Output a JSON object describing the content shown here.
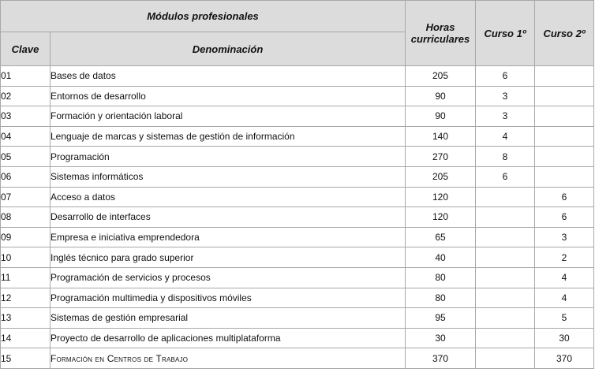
{
  "header": {
    "modulos": "Módulos profesionales",
    "horas_line1": "Horas",
    "horas_line2": "curriculares",
    "curso1": "Curso 1º",
    "curso2": "Curso 2º",
    "clave": "Clave",
    "denominacion": "Denominación"
  },
  "rows": [
    {
      "clave": "01",
      "denominacion": "Bases de datos",
      "horas": "205",
      "curso1": "6",
      "curso2": ""
    },
    {
      "clave": "02",
      "denominacion": "Entornos de desarrollo",
      "horas": "90",
      "curso1": "3",
      "curso2": ""
    },
    {
      "clave": "03",
      "denominacion": "Formación y orientación laboral",
      "horas": "90",
      "curso1": "3",
      "curso2": ""
    },
    {
      "clave": "04",
      "denominacion": "Lenguaje de marcas y sistemas de gestión de información",
      "horas": "140",
      "curso1": "4",
      "curso2": ""
    },
    {
      "clave": "05",
      "denominacion": "Programación",
      "horas": "270",
      "curso1": "8",
      "curso2": ""
    },
    {
      "clave": "06",
      "denominacion": "Sistemas informáticos",
      "horas": "205",
      "curso1": "6",
      "curso2": ""
    },
    {
      "clave": "07",
      "denominacion": "Acceso a datos",
      "horas": "120",
      "curso1": "",
      "curso2": "6"
    },
    {
      "clave": "08",
      "denominacion": "Desarrollo de interfaces",
      "horas": "120",
      "curso1": "",
      "curso2": "6"
    },
    {
      "clave": "09",
      "denominacion": "Empresa e iniciativa emprendedora",
      "horas": "65",
      "curso1": "",
      "curso2": "3"
    },
    {
      "clave": "10",
      "denominacion": "Inglés técnico para grado superior",
      "horas": "40",
      "curso1": "",
      "curso2": "2"
    },
    {
      "clave": "11",
      "denominacion": "Programación de servicios y procesos",
      "horas": "80",
      "curso1": "",
      "curso2": "4"
    },
    {
      "clave": "12",
      "denominacion": "Programación multimedia y dispositivos móviles",
      "horas": "80",
      "curso1": "",
      "curso2": "4"
    },
    {
      "clave": "13",
      "denominacion": "Sistemas de gestión empresarial",
      "horas": "95",
      "curso1": "",
      "curso2": "5"
    },
    {
      "clave": "14",
      "denominacion": "Proyecto de desarrollo de aplicaciones multiplataforma",
      "horas": "30",
      "curso1": "",
      "curso2": "30"
    },
    {
      "clave": "15",
      "denominacion": "Formación en Centros de Trabajo",
      "horas": "370",
      "curso1": "",
      "curso2": "370"
    }
  ]
}
